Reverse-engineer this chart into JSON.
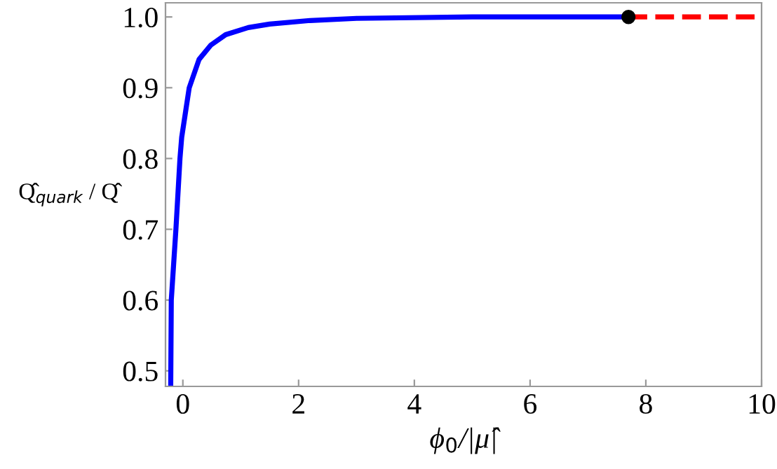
{
  "chart_data": {
    "type": "line",
    "xlabel": "ϕ$_{0}$/|μ̂|",
    "ylabel": "Q̂$_{quark}$ / Q̂",
    "xlim": [
      -0.3,
      10
    ],
    "ylim": [
      0.478,
      1.02
    ],
    "xticks": [
      0,
      2,
      4,
      6,
      8,
      10
    ],
    "yticks": [
      0.5,
      0.6,
      0.7,
      0.8,
      0.9,
      {
        "value": 1.0,
        "label": "1.0"
      }
    ],
    "grid": false,
    "series": [
      {
        "type": "line",
        "color": "#0000ff",
        "line_style": "solid",
        "x": [
          -0.21,
          -0.2,
          -0.12,
          -0.05,
          -0.02,
          0.11,
          0.28,
          0.48,
          0.74,
          1.13,
          1.5,
          2.2,
          3,
          5,
          7.7
        ],
        "values": [
          0.478,
          0.6,
          0.7,
          0.8,
          0.83,
          0.9,
          0.94,
          0.96,
          0.975,
          0.985,
          0.99,
          0.995,
          0.998,
          1.0,
          1.0
        ]
      },
      {
        "type": "scatter",
        "color": "#000000",
        "marker": "circle",
        "x": [
          7.7
        ],
        "values": [
          1.0
        ]
      },
      {
        "type": "line",
        "color": "#ff0000",
        "line_style": "dashed",
        "x": [
          7.7,
          10
        ],
        "values": [
          1.0,
          1.0
        ]
      }
    ]
  }
}
